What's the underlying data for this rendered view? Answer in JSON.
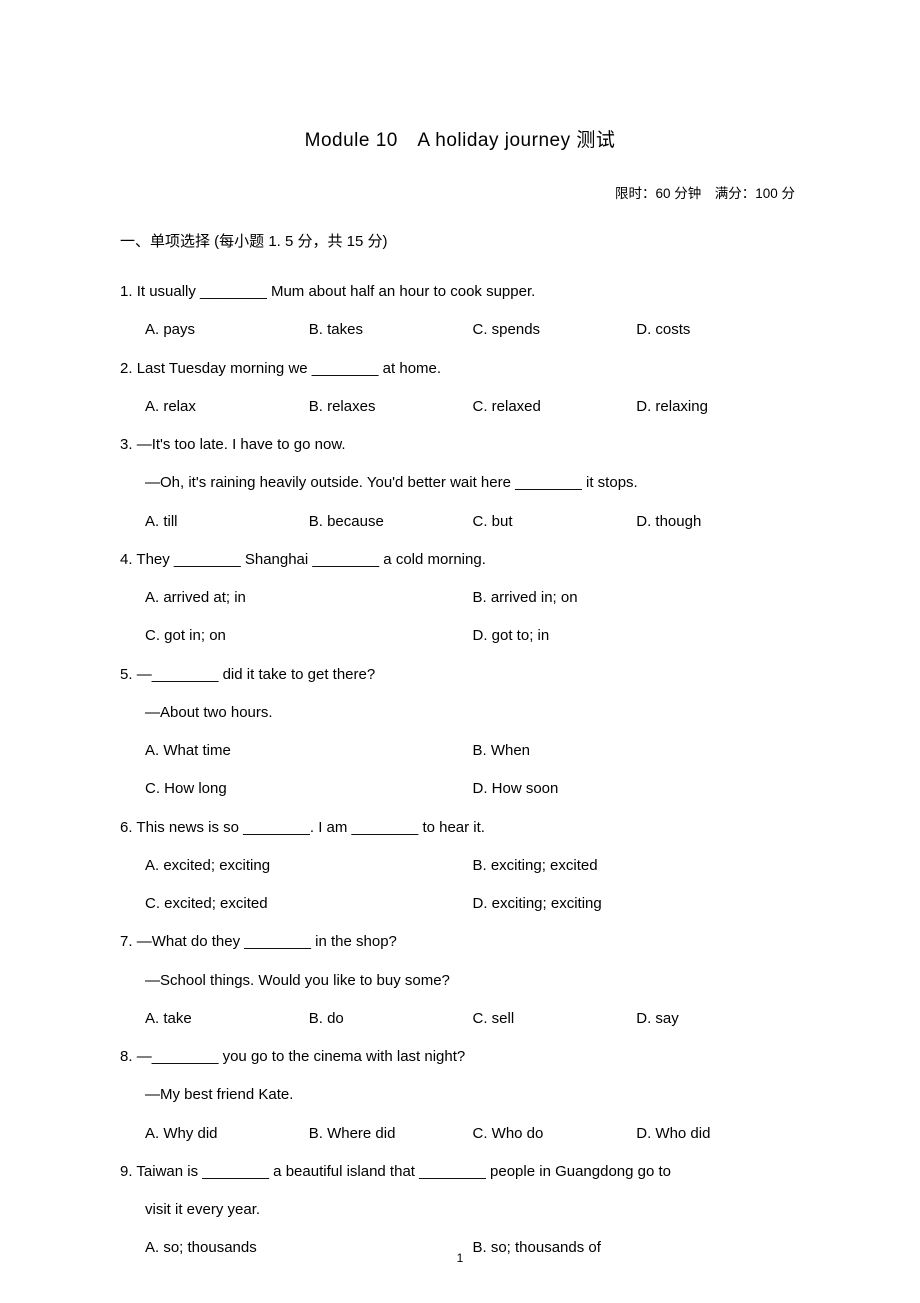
{
  "title": "Module 10　A holiday journey 测试",
  "meta": "限时：60 分钟　满分：100 分",
  "section": "一、单项选择 (每小题 1. 5 分，共 15 分)",
  "questions": [
    {
      "num": "1.",
      "stem": "It usually ________ Mum about half an hour to cook supper.",
      "layout": "four",
      "opts": [
        "A. pays",
        "B. takes",
        "C. spends",
        "D. costs"
      ]
    },
    {
      "num": "2.",
      "stem": "Last Tuesday morning we ________ at home.",
      "layout": "four",
      "opts": [
        "A. relax",
        "B. relaxes",
        "C. relaxed",
        "D. relaxing"
      ]
    },
    {
      "num": "3.",
      "stem": "—It's too late. I have to go now.",
      "line2": "—Oh, it's raining heavily outside. You'd better wait here ________ it stops.",
      "layout": "four",
      "opts": [
        "A. till",
        "B. because",
        "C. but",
        "D. though"
      ]
    },
    {
      "num": "4.",
      "stem": "They ________ Shanghai ________ a cold morning.",
      "layout": "two",
      "opts": [
        "A. arrived at; in",
        "B. arrived in; on",
        "C. got in; on",
        "D. got to; in"
      ]
    },
    {
      "num": "5.",
      "stem": "—________ did it take to get there?",
      "line2": "—About two hours.",
      "layout": "two",
      "opts": [
        "A. What time",
        "B. When",
        "C. How long",
        "D. How soon"
      ]
    },
    {
      "num": "6.",
      "stem": "This news is so ________. I am ________ to hear it.",
      "layout": "two",
      "opts": [
        "A. excited; exciting",
        "B. exciting; excited",
        "C. excited; excited",
        "D. exciting; exciting"
      ]
    },
    {
      "num": "7.",
      "stem": "—What do they ________ in the shop?",
      "line2": "—School things. Would you like to buy some?",
      "layout": "four",
      "opts": [
        "A. take",
        "B. do",
        "C. sell",
        "D. say"
      ]
    },
    {
      "num": "8.",
      "stem": "—________ you go to the cinema with last night?",
      "line2": "—My best friend Kate.",
      "layout": "four",
      "opts": [
        "A. Why did",
        "B. Where did",
        "C. Who do",
        "D. Who did"
      ]
    },
    {
      "num": "9.",
      "stem": "Taiwan is ________ a beautiful island that ________ people in Guangdong go to",
      "line2": "visit it every year.",
      "layout": "two-partial",
      "opts": [
        "A. so; thousands",
        "B. so; thousands of"
      ]
    }
  ],
  "pageNumber": "1"
}
